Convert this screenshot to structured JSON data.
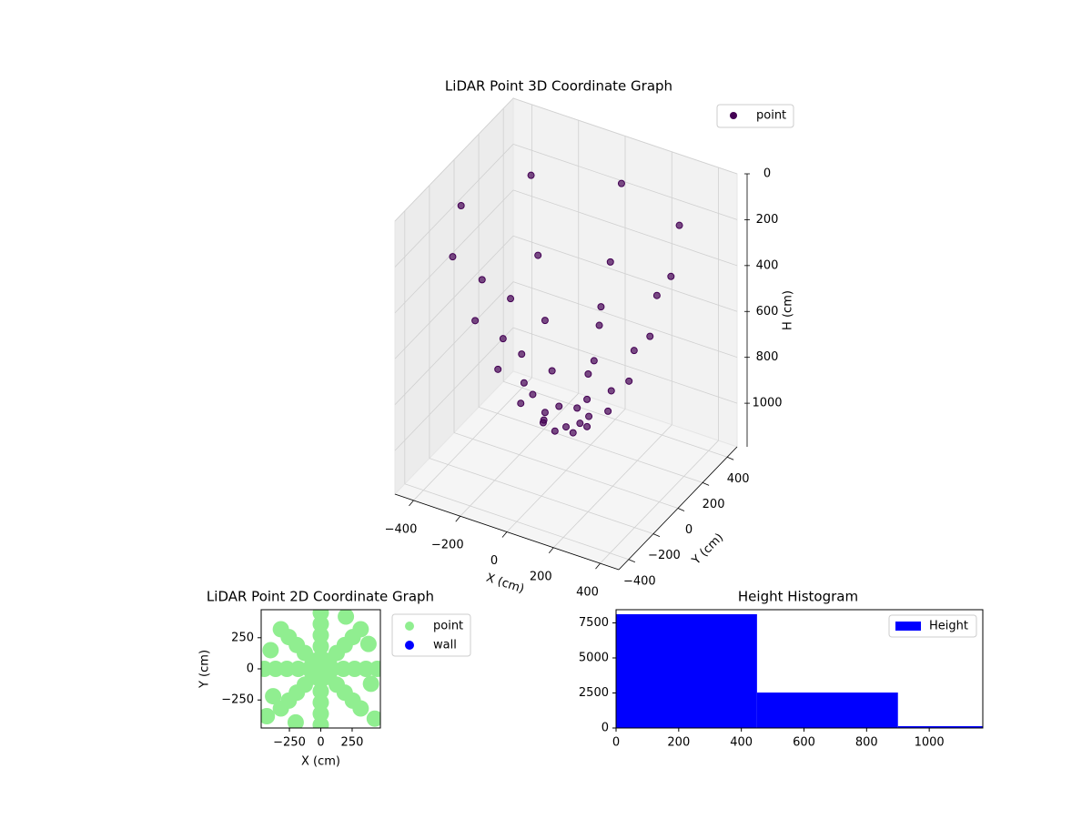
{
  "chart_data": [
    {
      "type": "scatter3d",
      "title": "LiDAR Point 3D Coordinate Graph",
      "xlabel": "X (cm)",
      "ylabel": "Y (cm)",
      "zlabel": "H (cm)",
      "xlim": [
        -480,
        480
      ],
      "ylim": [
        -480,
        480
      ],
      "zlim": [
        0,
        1190
      ],
      "zinverted": true,
      "xticks": [
        {
          "value": -400,
          "label": "−400"
        },
        {
          "value": -200,
          "label": "−200"
        },
        0,
        200,
        400
      ],
      "yticks": [
        {
          "value": -400,
          "label": "−400"
        },
        {
          "value": -200,
          "label": "−200"
        },
        0,
        200,
        400
      ],
      "zticks": [
        0,
        200,
        400,
        600,
        800,
        1000
      ],
      "grid": true,
      "legend": "upper right",
      "series": [
        {
          "name": "point",
          "color": "#440154",
          "x": [
            450,
            318,
            0,
            -318,
            -450,
            -318,
            0,
            318,
            360,
            255,
            0,
            -255,
            -360,
            -255,
            0,
            255,
            270,
            191,
            0,
            -191,
            -270,
            -191,
            0,
            191,
            180,
            127,
            0,
            -127,
            -180,
            -127,
            0,
            127,
            90,
            64,
            0,
            -64,
            -90,
            -64,
            0,
            64,
            0
          ],
          "y": [
            0,
            318,
            450,
            318,
            0,
            -318,
            -450,
            -318,
            0,
            255,
            360,
            255,
            0,
            -255,
            -360,
            -255,
            0,
            191,
            270,
            191,
            0,
            -191,
            -270,
            -191,
            0,
            127,
            180,
            127,
            0,
            -127,
            -180,
            -127,
            0,
            64,
            90,
            64,
            0,
            -64,
            -90,
            -64,
            0
          ],
          "z": [
            190,
            190,
            190,
            190,
            190,
            190,
            190,
            190,
            482,
            482,
            482,
            482,
            482,
            482,
            482,
            482,
            708,
            708,
            708,
            708,
            708,
            708,
            708,
            708,
            870,
            870,
            870,
            870,
            870,
            870,
            870,
            870,
            968,
            968,
            968,
            968,
            968,
            968,
            968,
            968,
            1000
          ]
        }
      ]
    },
    {
      "type": "scatter",
      "title": "LiDAR Point 2D Coordinate Graph",
      "xlabel": "X (cm)",
      "ylabel": "Y (cm)",
      "xlim": [
        -475,
        475
      ],
      "ylim": [
        -475,
        475
      ],
      "xticks": [
        {
          "value": -250,
          "label": "−250"
        },
        0,
        250
      ],
      "yticks": [
        {
          "value": -250,
          "label": "−250"
        },
        0,
        250
      ],
      "legend": "outside upper left",
      "series": [
        {
          "name": "point",
          "color": "#90ee90",
          "x": [
            450,
            318,
            0,
            -318,
            -450,
            -318,
            0,
            318,
            360,
            255,
            0,
            -255,
            -360,
            -255,
            0,
            255,
            270,
            191,
            0,
            -191,
            -270,
            -191,
            0,
            191,
            180,
            127,
            0,
            -127,
            -180,
            -127,
            0,
            127,
            90,
            64,
            0,
            -64,
            -90,
            -64,
            0,
            64,
            0,
            400,
            -400,
            380,
            -380,
            200,
            -200,
            430,
            -430
          ],
          "y": [
            0,
            318,
            450,
            318,
            0,
            -318,
            -450,
            -318,
            0,
            255,
            360,
            255,
            0,
            -255,
            -360,
            -255,
            0,
            191,
            270,
            191,
            0,
            -191,
            -270,
            -191,
            0,
            127,
            180,
            127,
            0,
            -127,
            -180,
            -127,
            0,
            64,
            90,
            64,
            0,
            -64,
            -90,
            -64,
            0,
            -120,
            150,
            200,
            -220,
            420,
            -430,
            -400,
            -380
          ]
        },
        {
          "name": "wall",
          "color": "#0000ff",
          "x": [],
          "y": []
        }
      ]
    },
    {
      "type": "histogram",
      "title": "Height Histogram",
      "bins": [
        0,
        450,
        900,
        1350
      ],
      "counts": [
        8120,
        2530,
        130
      ],
      "name": "Height",
      "color": "#0000ff",
      "xlim": [
        0,
        1171
      ],
      "ylim": [
        0,
        8440
      ],
      "xticks": [
        0,
        200,
        400,
        600,
        800,
        1000
      ],
      "yticks": [
        0,
        2500,
        5000,
        7500
      ],
      "legend": "upper right"
    }
  ]
}
